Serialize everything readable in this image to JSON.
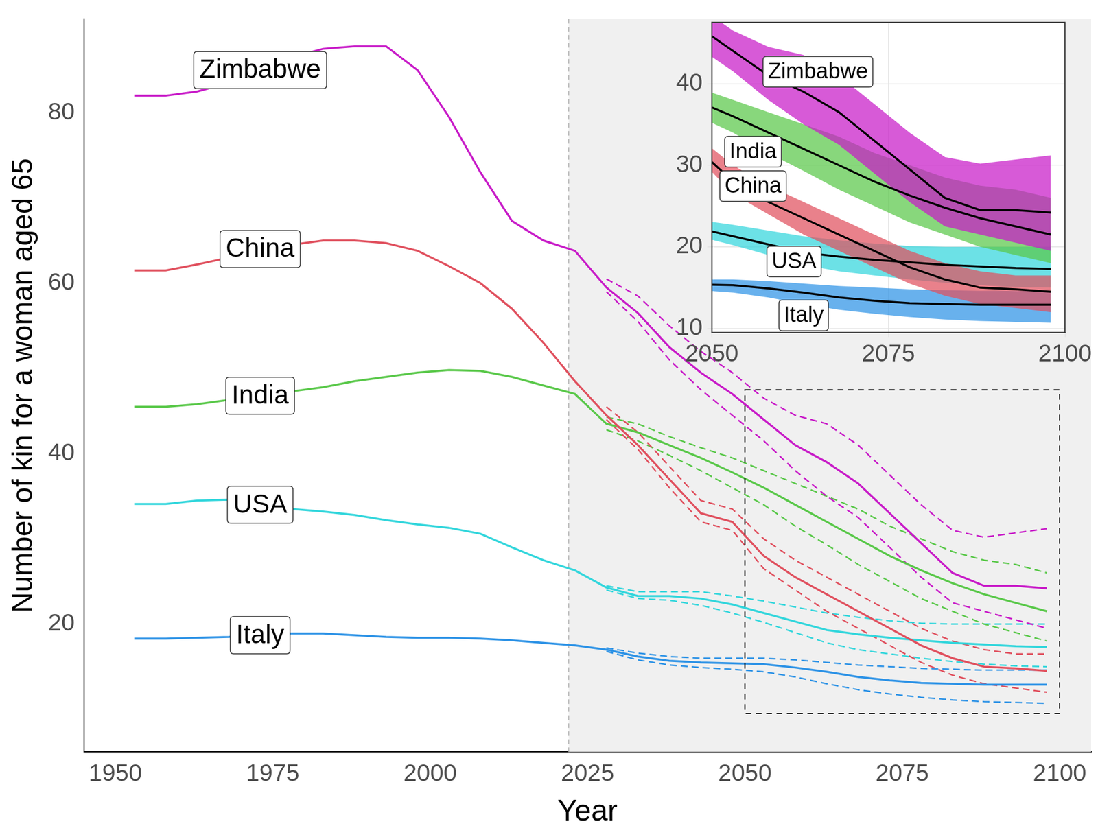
{
  "chart_data": {
    "type": "line",
    "x_label": "Year",
    "y_label": "Number of kin for a woman aged 65",
    "x": [
      1953,
      1958,
      1963,
      1968,
      1973,
      1978,
      1983,
      1988,
      1993,
      1998,
      2003,
      2008,
      2013,
      2018,
      2023,
      2028,
      2033,
      2038,
      2043,
      2048,
      2053,
      2058,
      2063,
      2068,
      2073,
      2078,
      2083,
      2088,
      2093,
      2098
    ],
    "xlim": [
      1945,
      2105
    ],
    "xticks": [
      1950,
      1975,
      2000,
      2025,
      2050,
      2075,
      2100
    ],
    "ylim": [
      5,
      91
    ],
    "yticks": [
      20,
      40,
      60,
      80
    ],
    "grid": false,
    "projection_start": 2022,
    "series": [
      {
        "name": "Zimbabwe",
        "color": "#c81bc8",
        "values": [
          82.0,
          82.0,
          82.5,
          83.5,
          85.0,
          86.5,
          87.5,
          87.8,
          87.8,
          85.0,
          79.5,
          73.0,
          67.3,
          65.0,
          63.8,
          59.5,
          56.5,
          52.5,
          49.5,
          47.0,
          44.0,
          41.0,
          39.0,
          36.5,
          33.0,
          29.5,
          26.0,
          24.5,
          24.5,
          24.2
        ],
        "lower": [
          null,
          null,
          null,
          null,
          null,
          null,
          null,
          null,
          null,
          null,
          null,
          null,
          null,
          null,
          null,
          59.0,
          55.5,
          51.0,
          47.5,
          44.5,
          41.5,
          38.0,
          35.0,
          32.5,
          29.0,
          25.5,
          22.5,
          21.5,
          20.5,
          19.5
        ],
        "upper": [
          null,
          null,
          null,
          null,
          null,
          null,
          null,
          null,
          null,
          null,
          null,
          null,
          null,
          null,
          null,
          60.5,
          58.5,
          55.0,
          52.0,
          49.5,
          46.5,
          44.5,
          43.5,
          41.0,
          37.5,
          34.0,
          31.0,
          30.2,
          30.7,
          31.2
        ]
      },
      {
        "name": "China",
        "color": "#e0505e",
        "values": [
          61.5,
          61.5,
          62.2,
          63.0,
          64.0,
          64.5,
          65.0,
          65.0,
          64.7,
          63.8,
          62.0,
          60.0,
          57.0,
          53.0,
          48.5,
          44.5,
          41.0,
          37.0,
          33.0,
          32.0,
          28.0,
          25.5,
          23.5,
          21.5,
          19.5,
          17.5,
          16.0,
          15.0,
          14.8,
          14.5
        ],
        "lower": [
          null,
          null,
          null,
          null,
          null,
          null,
          null,
          null,
          null,
          null,
          null,
          null,
          null,
          null,
          null,
          44.0,
          40.5,
          36.0,
          32.0,
          31.0,
          26.5,
          24.0,
          21.5,
          19.5,
          17.5,
          15.5,
          14.0,
          13.0,
          12.5,
          12.0
        ],
        "upper": [
          null,
          null,
          null,
          null,
          null,
          null,
          null,
          null,
          null,
          null,
          null,
          null,
          null,
          null,
          null,
          45.5,
          42.5,
          38.5,
          34.5,
          33.5,
          30.0,
          27.5,
          25.5,
          23.5,
          21.5,
          19.5,
          18.0,
          17.0,
          16.5,
          16.5
        ]
      },
      {
        "name": "India",
        "color": "#5ac84a",
        "values": [
          45.5,
          45.5,
          45.8,
          46.3,
          46.8,
          47.3,
          47.8,
          48.5,
          49.0,
          49.5,
          49.8,
          49.7,
          49.0,
          48.0,
          47.0,
          43.5,
          42.5,
          41.0,
          39.5,
          37.8,
          36.0,
          34.0,
          32.0,
          30.0,
          28.0,
          26.3,
          24.8,
          23.5,
          22.5,
          21.5
        ],
        "lower": [
          null,
          null,
          null,
          null,
          null,
          null,
          null,
          null,
          null,
          null,
          null,
          null,
          null,
          null,
          null,
          42.8,
          41.5,
          39.8,
          38.0,
          36.0,
          34.0,
          31.5,
          29.3,
          27.0,
          25.0,
          23.0,
          21.5,
          20.0,
          19.0,
          18.0
        ],
        "upper": [
          null,
          null,
          null,
          null,
          null,
          null,
          null,
          null,
          null,
          null,
          null,
          null,
          null,
          null,
          null,
          44.3,
          43.5,
          42.0,
          40.7,
          39.5,
          38.0,
          36.5,
          35.0,
          33.5,
          31.5,
          30.0,
          28.5,
          27.5,
          27.0,
          26.0
        ]
      },
      {
        "name": "USA",
        "color": "#33d6dc",
        "values": [
          34.1,
          34.1,
          34.5,
          34.6,
          34.0,
          33.5,
          33.2,
          32.8,
          32.2,
          31.7,
          31.3,
          30.6,
          29.0,
          27.5,
          26.3,
          24.3,
          23.3,
          23.3,
          23.0,
          22.3,
          21.3,
          20.3,
          19.3,
          18.8,
          18.4,
          18.1,
          17.8,
          17.6,
          17.4,
          17.3
        ],
        "lower": [
          null,
          null,
          null,
          null,
          null,
          null,
          null,
          null,
          null,
          null,
          null,
          null,
          null,
          null,
          null,
          24.0,
          23.0,
          22.8,
          22.2,
          21.3,
          20.2,
          19.0,
          17.8,
          17.0,
          16.5,
          16.0,
          15.6,
          15.3,
          15.1,
          15.0
        ],
        "upper": [
          null,
          null,
          null,
          null,
          null,
          null,
          null,
          null,
          null,
          null,
          null,
          null,
          null,
          null,
          null,
          24.5,
          23.8,
          23.8,
          23.8,
          23.3,
          22.7,
          22.0,
          21.3,
          20.8,
          20.4,
          20.1,
          20.0,
          20.0,
          20.0,
          20.0
        ]
      },
      {
        "name": "Italy",
        "color": "#2e93e6",
        "values": [
          18.3,
          18.3,
          18.4,
          18.5,
          18.7,
          18.9,
          18.9,
          18.7,
          18.5,
          18.4,
          18.4,
          18.3,
          18.1,
          17.8,
          17.5,
          17.0,
          16.2,
          15.7,
          15.5,
          15.4,
          15.3,
          14.9,
          14.4,
          13.8,
          13.4,
          13.1,
          13.0,
          12.9,
          12.9,
          12.9
        ],
        "lower": [
          null,
          null,
          null,
          null,
          null,
          null,
          null,
          null,
          null,
          null,
          null,
          null,
          null,
          null,
          null,
          16.8,
          15.8,
          15.2,
          14.9,
          14.7,
          14.4,
          13.8,
          13.0,
          12.3,
          11.8,
          11.4,
          11.1,
          10.9,
          10.8,
          10.7
        ],
        "upper": [
          null,
          null,
          null,
          null,
          null,
          null,
          null,
          null,
          null,
          null,
          null,
          null,
          null,
          null,
          null,
          17.2,
          16.6,
          16.2,
          16.0,
          16.0,
          16.0,
          15.8,
          15.5,
          15.2,
          15.0,
          14.8,
          14.7,
          14.6,
          14.6,
          14.6
        ]
      }
    ],
    "inset": {
      "xlim": [
        2050,
        2100
      ],
      "xticks": [
        2050,
        2075,
        2100
      ],
      "ylim": [
        9.5,
        47.5
      ],
      "yticks": [
        10,
        20,
        30,
        40
      ],
      "grid": true,
      "color": "#000000"
    }
  }
}
